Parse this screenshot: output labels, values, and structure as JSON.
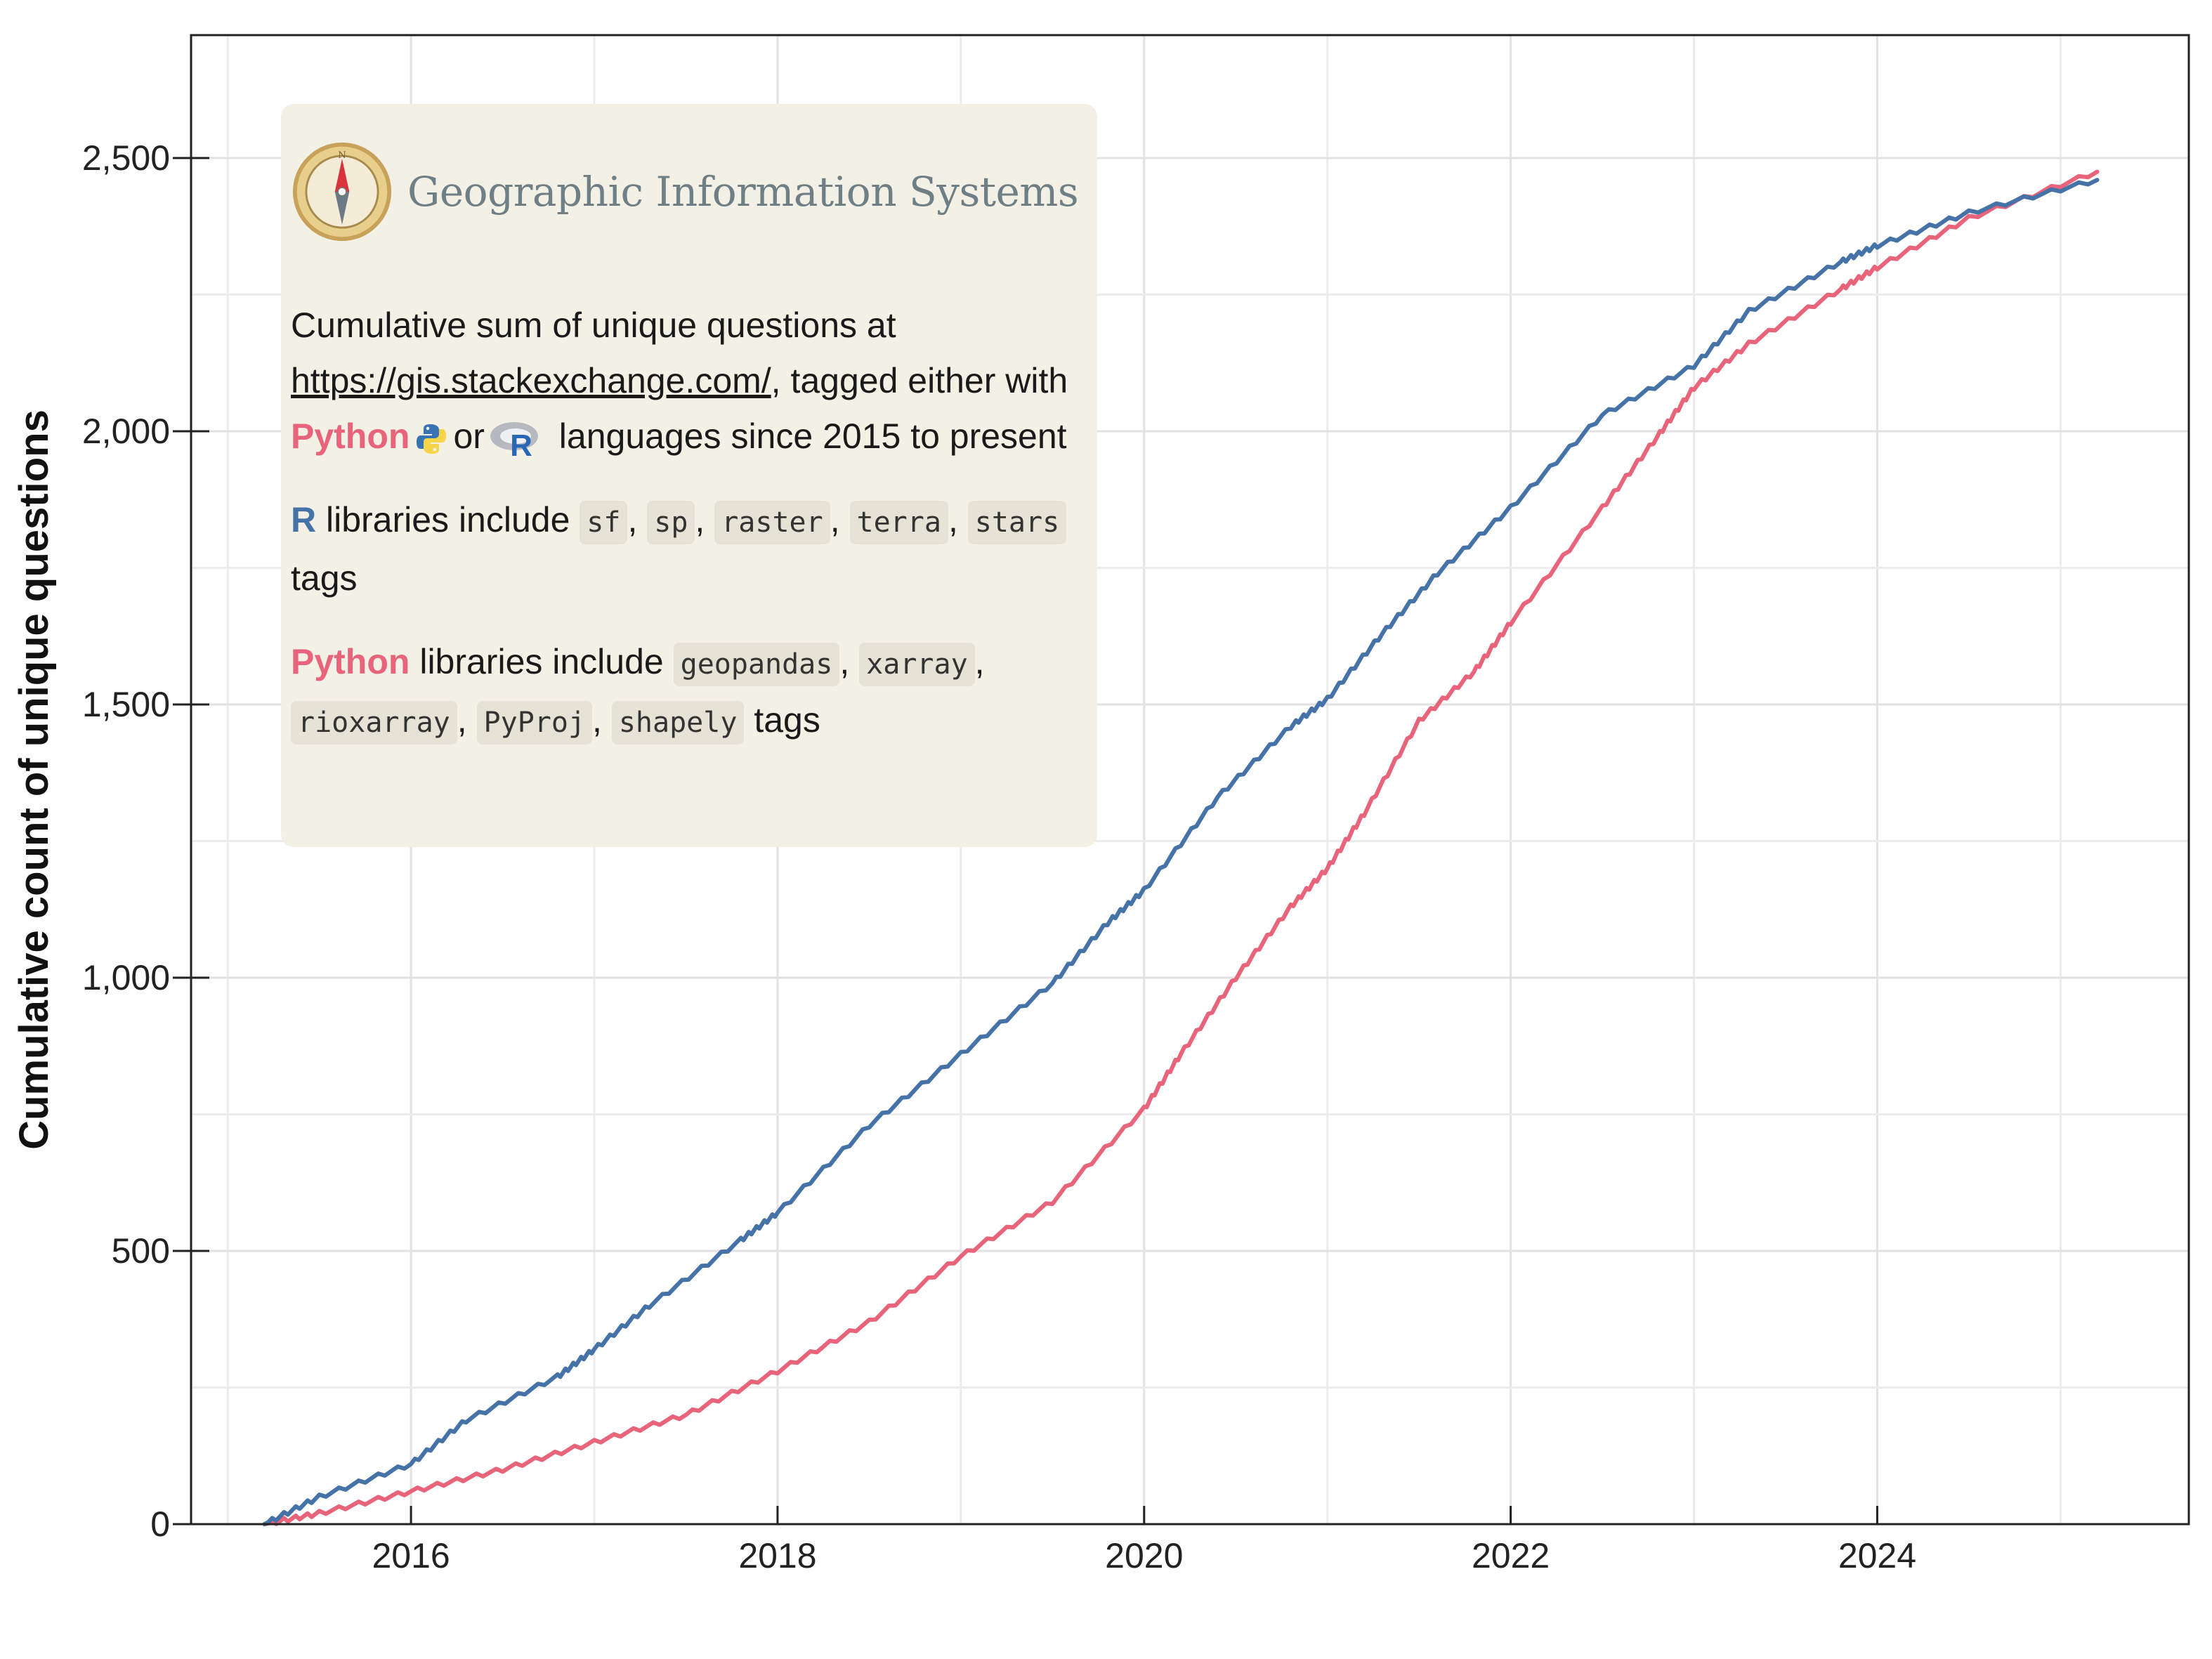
{
  "chart_data": {
    "type": "line",
    "title": "",
    "xlabel": "",
    "ylabel": "Cumulative count of unique questions",
    "xlim": [
      2014.8,
      2025.7
    ],
    "ylim": [
      0,
      2725
    ],
    "xticks": [
      2016,
      2018,
      2020,
      2022,
      2024
    ],
    "xtick_labels": [
      "2016",
      "2018",
      "2020",
      "2022",
      "2024"
    ],
    "yticks": [
      0,
      500,
      1000,
      1500,
      2000,
      2500
    ],
    "ytick_labels": [
      "0",
      "500",
      "1,000",
      "1,500",
      "2,000",
      "2,500"
    ],
    "grid": true,
    "legend": "none",
    "series": [
      {
        "name": "R",
        "color": "#4572a7",
        "x": [
          2015.2,
          2015.5,
          2016.0,
          2016.3,
          2016.8,
          2017.0,
          2017.3,
          2017.8,
          2018.0,
          2018.5,
          2019.0,
          2019.5,
          2019.8,
          2020.0,
          2020.4,
          2020.8,
          2021.0,
          2021.3,
          2021.6,
          2022.0,
          2022.5,
          2023.0,
          2023.3,
          2023.8,
          2024.0,
          2024.5,
          2025.2
        ],
        "y": [
          0,
          50,
          110,
          190,
          270,
          320,
          400,
          520,
          570,
          730,
          860,
          990,
          1100,
          1160,
          1330,
          1460,
          1510,
          1630,
          1740,
          1860,
          2030,
          2120,
          2220,
          2310,
          2340,
          2400,
          2460
        ]
      },
      {
        "name": "Python",
        "color": "#e8647a",
        "x": [
          2015.2,
          2015.5,
          2016.0,
          2016.5,
          2017.0,
          2017.5,
          2018.0,
          2018.5,
          2019.0,
          2019.5,
          2020.0,
          2020.2,
          2020.5,
          2020.8,
          2021.0,
          2021.2,
          2021.5,
          2021.8,
          2022.0,
          2022.5,
          2022.8,
          2023.0,
          2023.3,
          2023.8,
          2024.0,
          2024.5,
          2025.2
        ],
        "y": [
          0,
          20,
          60,
          100,
          150,
          200,
          280,
          370,
          490,
          590,
          760,
          860,
          1000,
          1130,
          1200,
          1300,
          1470,
          1560,
          1650,
          1860,
          1990,
          2080,
          2160,
          2260,
          2300,
          2390,
          2475
        ]
      }
    ]
  },
  "info_box": {
    "logo_text": "Geographic Information Systems",
    "p1_part1": "Cumulative sum of unique questions at ",
    "p1_link": "https://gis.stackexchange.com/",
    "p1_part2": ", tagged either with ",
    "python_label": "Python",
    "p1_or": "or",
    "p1_part3": " languages since 2015 to present",
    "r_label": "R",
    "r_text": " libraries include ",
    "r_tags": [
      "sf",
      "sp",
      "raster",
      "terra",
      "stars"
    ],
    "tags_suffix": " tags",
    "py_text": " libraries include ",
    "py_tags": [
      "geopandas",
      "xarray",
      "rioxarray",
      "PyProj",
      "shapely"
    ]
  }
}
